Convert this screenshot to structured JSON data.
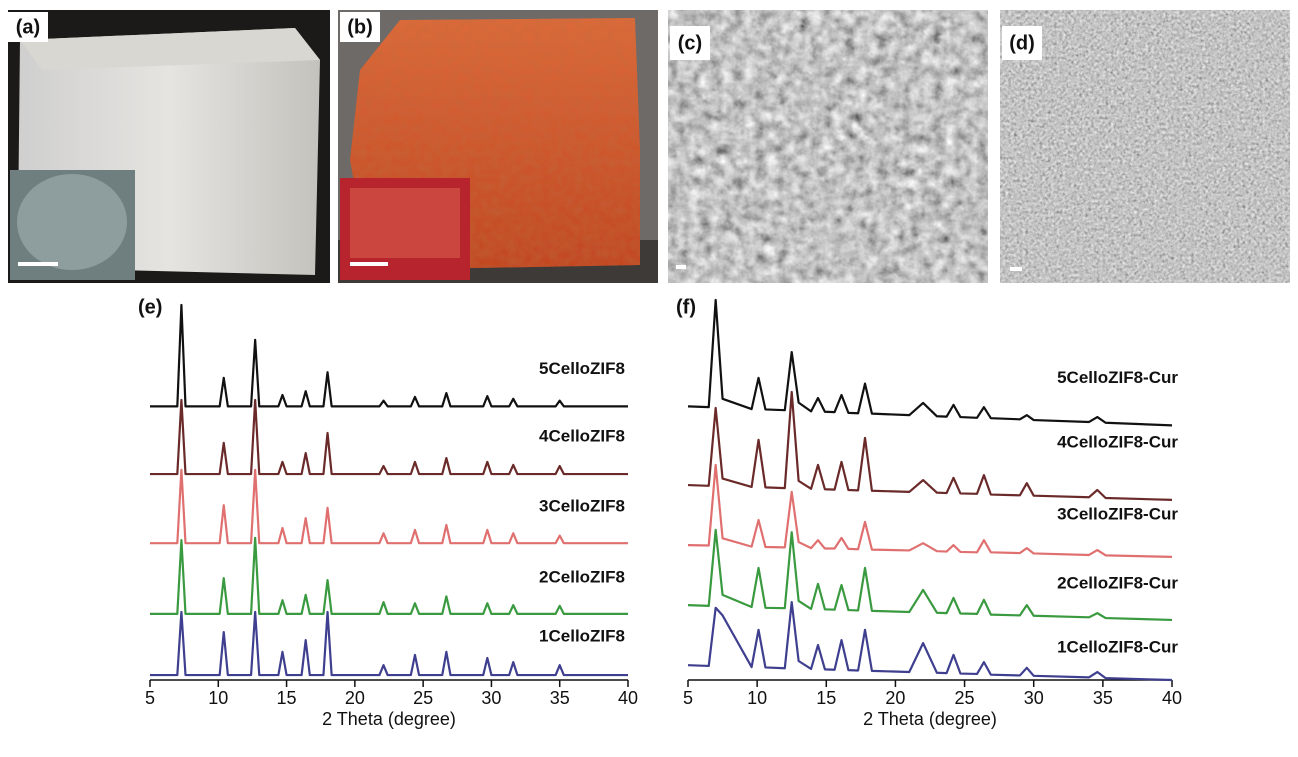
{
  "panels": [
    {
      "label": "(a)"
    },
    {
      "label": "(b)"
    },
    {
      "label": "(c)"
    },
    {
      "label": "(d)"
    }
  ],
  "chart_data": [
    {
      "type": "line",
      "title": "(e)",
      "xlabel": "2 Theta (degree)",
      "xlim": [
        5,
        40
      ],
      "xticks": [
        5,
        10,
        15,
        20,
        25,
        30,
        35,
        40
      ],
      "ylim": [
        0,
        100
      ],
      "x": [
        5,
        7.0,
        7.3,
        7.6,
        10.1,
        10.4,
        10.7,
        12.4,
        12.7,
        13.0,
        14.4,
        14.7,
        15.0,
        16.1,
        16.4,
        16.7,
        17.7,
        18.0,
        18.3,
        21.8,
        22.1,
        22.4,
        24.1,
        24.4,
        24.7,
        26.4,
        26.7,
        27.0,
        29.4,
        29.7,
        30.0,
        31.3,
        31.6,
        31.9,
        34.7,
        35.0,
        35.3,
        40
      ],
      "series": [
        {
          "name": "5CelloZIF8",
          "color": "#111111",
          "values": [
            72,
            72,
            98.7,
            72,
            72,
            79.5,
            72,
            72,
            89.5,
            72,
            72,
            75,
            72,
            72,
            76,
            72,
            72,
            81,
            72,
            72,
            73.5,
            72,
            72,
            74.5,
            72,
            72,
            75.5,
            72,
            72,
            74.7,
            72,
            72,
            74,
            72,
            72,
            73.5,
            72,
            72
          ]
        },
        {
          "name": "4CelloZIF8",
          "color": "#6b2a2a",
          "values": [
            54.2,
            54.2,
            73.7,
            54.2,
            54.2,
            62.4,
            54.2,
            54.2,
            73.7,
            54.2,
            54.2,
            57.4,
            54.2,
            54.2,
            59.7,
            54.2,
            54.2,
            65,
            54.2,
            54.2,
            56.3,
            54.2,
            54.2,
            57.4,
            54.2,
            54.2,
            58.4,
            54.2,
            54.2,
            57.4,
            54.2,
            54.2,
            56.6,
            54.2,
            54.2,
            56.3,
            54.2,
            54.2
          ]
        },
        {
          "name": "3CelloZIF8",
          "color": "#e07070",
          "values": [
            36,
            36,
            55.3,
            36,
            36,
            46,
            36,
            36,
            55.3,
            36,
            36,
            40,
            36,
            36,
            42.6,
            36,
            36,
            45.3,
            36,
            36,
            38.6,
            36,
            36,
            39.5,
            36,
            36,
            40.8,
            36,
            36,
            39.5,
            36,
            36,
            38.6,
            36,
            36,
            38,
            36,
            36
          ]
        },
        {
          "name": "2CelloZIF8",
          "color": "#3a9a40",
          "values": [
            17.4,
            17.4,
            36.8,
            17.4,
            17.4,
            26.8,
            17.4,
            17.4,
            37.4,
            17.4,
            17.4,
            21,
            17.4,
            17.4,
            22.4,
            17.4,
            17.4,
            26.3,
            17.4,
            17.4,
            20.5,
            17.4,
            17.4,
            20.2,
            17.4,
            17.4,
            22,
            17.4,
            17.4,
            20.2,
            17.4,
            17.4,
            19.7,
            17.4,
            17.4,
            19.5,
            17.4,
            17.4
          ]
        },
        {
          "name": "1CelloZIF8",
          "color": "#3f3f8f",
          "values": [
            1.3,
            1.3,
            17.9,
            1.3,
            1.3,
            12.6,
            1.3,
            1.3,
            17.9,
            1.3,
            1.3,
            7.4,
            1.3,
            1.3,
            10.5,
            1.3,
            1.3,
            17.9,
            1.3,
            1.3,
            3.9,
            1.3,
            1.3,
            6.6,
            1.3,
            1.3,
            7.4,
            1.3,
            1.3,
            5.8,
            1.3,
            1.3,
            4.7,
            1.3,
            1.3,
            3.9,
            1.3,
            1.3
          ]
        }
      ]
    },
    {
      "type": "line",
      "title": "(f)",
      "xlabel": "2 Theta (degree)",
      "xlim": [
        5,
        40
      ],
      "xticks": [
        5,
        10,
        15,
        20,
        25,
        30,
        35,
        40
      ],
      "ylim": [
        0,
        100
      ],
      "x": [
        5,
        6.5,
        7.0,
        7.5,
        9.6,
        10.1,
        10.6,
        12.0,
        12.5,
        13.0,
        13.9,
        14.4,
        14.9,
        15.6,
        16.1,
        16.6,
        17.3,
        17.8,
        18.3,
        21.0,
        22.0,
        23.0,
        23.7,
        24.2,
        24.7,
        25.9,
        26.4,
        26.9,
        29.0,
        29.5,
        30.0,
        34.0,
        34.6,
        35.2,
        40
      ],
      "series": [
        {
          "name": "5CelloZIF8-Cur",
          "color": "#111111",
          "values": [
            72,
            71.8,
            100,
            74,
            71.3,
            79.5,
            71.2,
            71,
            86.3,
            73,
            70.7,
            74.2,
            70.6,
            70.5,
            75,
            70.3,
            70.2,
            78,
            70.1,
            69.7,
            72.9,
            69.4,
            69.3,
            72.4,
            69.2,
            69,
            71.8,
            68.9,
            68.6,
            69.7,
            68.4,
            67.9,
            69.2,
            67.7,
            67
          ]
        },
        {
          "name": "4CelloZIF8-Cur",
          "color": "#6b2a2a",
          "values": [
            51.3,
            51.1,
            71.6,
            53,
            50.8,
            63.2,
            50.7,
            50.5,
            75.8,
            52.4,
            50.3,
            56.6,
            50.2,
            50.1,
            57.4,
            50,
            49.9,
            63.7,
            49.8,
            49.5,
            52.6,
            49.3,
            49.2,
            53.2,
            49.1,
            49,
            53.9,
            48.8,
            48.6,
            51.8,
            48.5,
            48.1,
            50,
            47.9,
            47.4
          ]
        },
        {
          "name": "3CelloZIF8-Cur",
          "color": "#e07070",
          "values": [
            35.5,
            35.4,
            56.6,
            37.3,
            35.1,
            42.1,
            35,
            34.9,
            49.5,
            36.3,
            34.7,
            36.8,
            34.6,
            34.6,
            37.4,
            34.5,
            34.4,
            41.6,
            34.3,
            34.1,
            36,
            33.9,
            33.8,
            35.5,
            33.7,
            33.6,
            36.8,
            33.6,
            33.4,
            34.7,
            33.3,
            32.9,
            34.2,
            32.8,
            32.4
          ]
        },
        {
          "name": "2CelloZIF8-Cur",
          "color": "#3a9a40",
          "values": [
            19.7,
            19.5,
            39.5,
            22.4,
            19.2,
            29.5,
            19,
            18.9,
            38.9,
            20.8,
            18.7,
            25.3,
            18.6,
            18.5,
            25,
            18.4,
            18.3,
            29.5,
            18.2,
            17.9,
            23.7,
            17.7,
            17.6,
            21.6,
            17.5,
            17.4,
            21.1,
            17.2,
            17,
            19.7,
            16.9,
            16.5,
            17.6,
            16.3,
            15.8
          ]
        },
        {
          "name": "1CelloZIF8-Cur",
          "color": "#3f3f8f",
          "values": [
            3.9,
            3.7,
            19,
            17,
            3.4,
            13.2,
            3.3,
            3.1,
            20.5,
            5,
            2.9,
            9.2,
            2.8,
            2.7,
            10.5,
            2.6,
            2.5,
            13.2,
            2.4,
            2.1,
            9.7,
            1.9,
            1.8,
            6.6,
            1.7,
            1.6,
            4.7,
            1.4,
            1.2,
            3.2,
            1.1,
            0.7,
            2.1,
            0.5,
            0
          ]
        }
      ]
    }
  ]
}
